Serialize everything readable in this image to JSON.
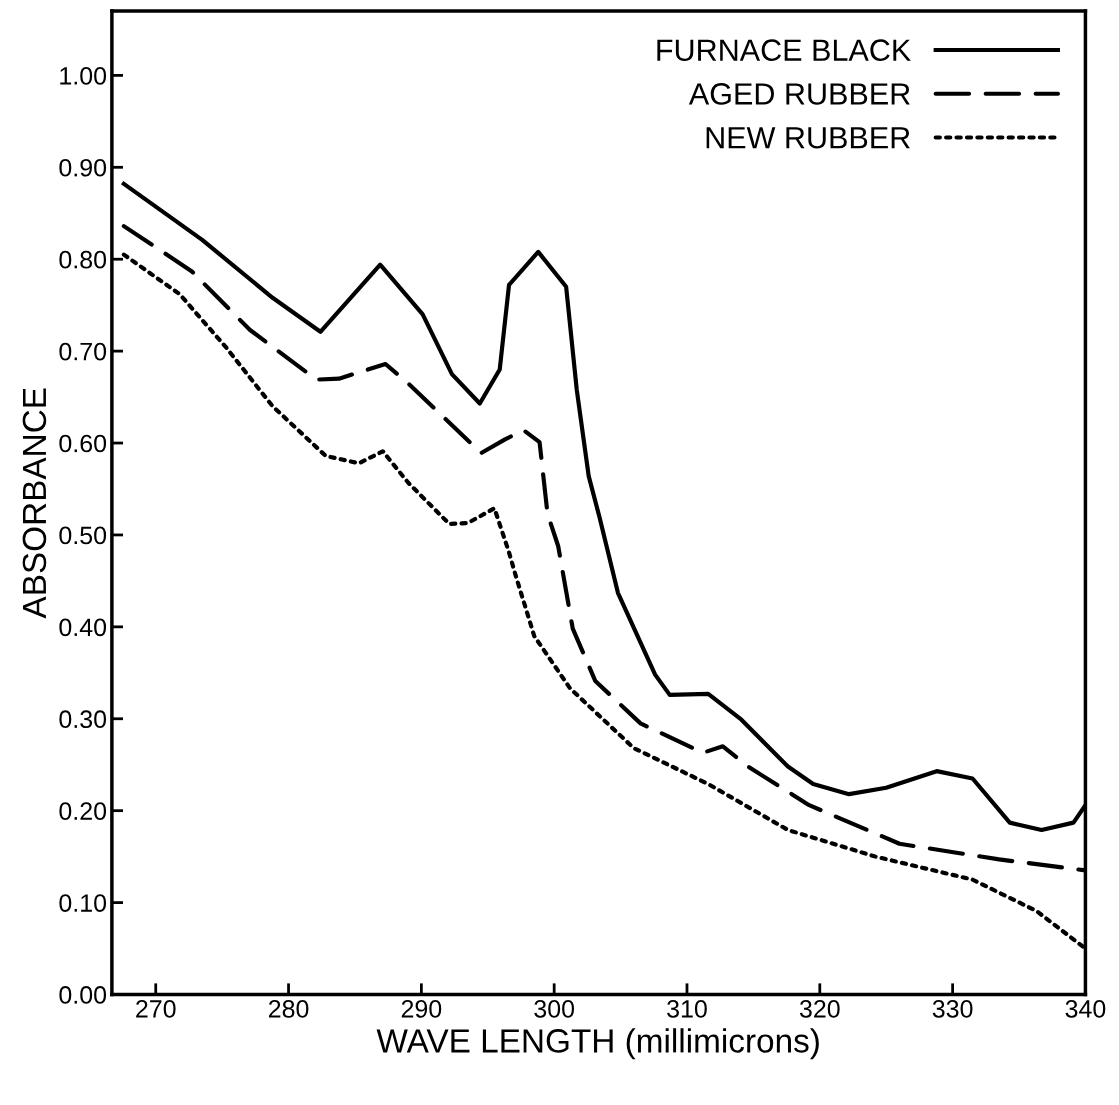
{
  "chart_data": {
    "type": "line",
    "xlabel": "WAVE LENGTH (millimicrons)",
    "ylabel": "ABSORBANCE",
    "xlim": [
      266.7,
      340
    ],
    "xticks": [
      270,
      280,
      290,
      300,
      310,
      320,
      330,
      340
    ],
    "ylim": [
      0,
      1.07
    ],
    "yticks": [
      {
        "value": 0,
        "label": "0.00"
      },
      {
        "value": 0.1,
        "label": "0.10"
      },
      {
        "value": 0.2,
        "label": "0.20"
      },
      {
        "value": 0.3,
        "label": "0.30"
      },
      {
        "value": 0.4,
        "label": "0.40"
      },
      {
        "value": 0.5,
        "label": "0.50"
      },
      {
        "value": 0.6,
        "label": "0.60"
      },
      {
        "value": 0.7,
        "label": "0.70"
      },
      {
        "value": 0.8,
        "label": "0.80"
      },
      {
        "value": 0.9,
        "label": "0.90"
      },
      {
        "value": 1.0,
        "label": "1.00"
      }
    ],
    "grid": false,
    "legend": "top right",
    "marker": "none",
    "series": [
      {
        "name": "FURNACE BLACK",
        "color": "#000000",
        "line_style": "solid",
        "x": [
          267.6,
          273.5,
          278.8,
          282.4,
          286.9,
          290.1,
          292.3,
          294.4,
          295.9,
          296.6,
          298.8,
          300.9,
          301.7,
          302.6,
          303.4,
          304.8,
          307.6,
          308.7,
          311.6,
          314.1,
          317.6,
          319.5,
          322.2,
          325.0,
          328.8,
          331.5,
          334.3,
          336.7,
          339.1,
          340
        ],
        "values": [
          0.882,
          0.821,
          0.758,
          0.721,
          0.794,
          0.74,
          0.675,
          0.643,
          0.68,
          0.772,
          0.808,
          0.77,
          0.658,
          0.564,
          0.52,
          0.437,
          0.348,
          0.326,
          0.327,
          0.299,
          0.248,
          0.229,
          0.218,
          0.225,
          0.243,
          0.235,
          0.187,
          0.179,
          0.187,
          0.206
        ]
      },
      {
        "name": "AGED RUBBER",
        "color": "#000000",
        "line_style": "dashed",
        "x": [
          267.6,
          272.7,
          277.1,
          282.1,
          283.8,
          287.3,
          289.0,
          294.5,
          296.3,
          297.7,
          298.9,
          299.5,
          300.3,
          301.4,
          303.1,
          306.5,
          311.2,
          312.7,
          314.6,
          319.2,
          326.0,
          333.5,
          340
        ],
        "values": [
          0.836,
          0.787,
          0.723,
          0.669,
          0.67,
          0.686,
          0.665,
          0.589,
          0.604,
          0.614,
          0.601,
          0.523,
          0.488,
          0.398,
          0.341,
          0.295,
          0.263,
          0.27,
          0.248,
          0.206,
          0.164,
          0.147,
          0.135
        ]
      },
      {
        "name": "NEW RUBBER",
        "color": "#000000",
        "line_style": "dotted",
        "x": [
          267.6,
          271.8,
          275.3,
          278.8,
          282.8,
          285.3,
          287.1,
          289.0,
          292.1,
          293.5,
          295.5,
          296.6,
          297.1,
          298.5,
          301.2,
          306.0,
          311.6,
          317.6,
          324.2,
          331.5,
          336.3,
          340
        ],
        "values": [
          0.805,
          0.762,
          0.704,
          0.64,
          0.586,
          0.578,
          0.591,
          0.557,
          0.512,
          0.513,
          0.529,
          0.481,
          0.456,
          0.39,
          0.333,
          0.268,
          0.229,
          0.179,
          0.15,
          0.125,
          0.091,
          0.05
        ]
      }
    ]
  }
}
